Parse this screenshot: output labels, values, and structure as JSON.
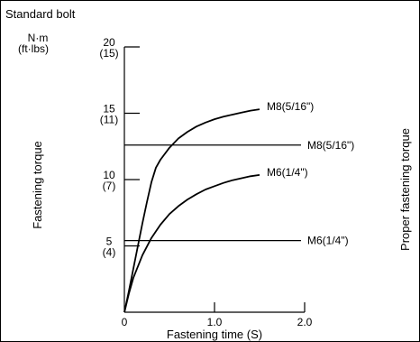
{
  "chart_data": {
    "type": "line",
    "title": "Standard bolt",
    "units": [
      "N·m",
      "(ft·lbs)"
    ],
    "xlabel": "Fastening time (S)",
    "ylabel": "Fastening torque",
    "right_label": "Proper fastening torque",
    "xlim": [
      0,
      2.0
    ],
    "ylim": [
      0,
      20
    ],
    "x_ticks": [
      {
        "value": 0,
        "label": "0"
      },
      {
        "value": 1.0,
        "label": "1.0"
      },
      {
        "value": 2.0,
        "label": "2.0"
      }
    ],
    "y_ticks": [
      {
        "value": 5,
        "nm": "5",
        "ftlbs": "(4)"
      },
      {
        "value": 10,
        "nm": "10",
        "ftlbs": "(7)"
      },
      {
        "value": 15,
        "nm": "15",
        "ftlbs": "(11)"
      },
      {
        "value": 20,
        "nm": "20",
        "ftlbs": "(15)"
      }
    ],
    "series": [
      {
        "name": "M8(5/16\")",
        "x": [
          0,
          0.05,
          0.1,
          0.15,
          0.2,
          0.25,
          0.3,
          0.35,
          0.4,
          0.5,
          0.6,
          0.7,
          0.8,
          0.9,
          1.0,
          1.1,
          1.2,
          1.3,
          1.4,
          1.5
        ],
        "values": [
          0,
          1.6,
          3.3,
          5.0,
          6.7,
          8.3,
          9.8,
          10.9,
          11.5,
          12.4,
          13.1,
          13.6,
          14.0,
          14.3,
          14.55,
          14.75,
          14.9,
          15.05,
          15.2,
          15.3
        ]
      },
      {
        "name": "M6(1/4\")",
        "x": [
          0,
          0.05,
          0.1,
          0.2,
          0.3,
          0.4,
          0.5,
          0.6,
          0.7,
          0.8,
          0.9,
          1.0,
          1.1,
          1.2,
          1.3,
          1.4,
          1.5
        ],
        "values": [
          0,
          1.4,
          2.6,
          4.3,
          5.6,
          6.6,
          7.4,
          8.0,
          8.5,
          8.9,
          9.25,
          9.5,
          9.75,
          9.95,
          10.1,
          10.25,
          10.35
        ]
      }
    ],
    "reference_lines": [
      {
        "name": "M8(5/16\")",
        "value": 12.6
      },
      {
        "name": "M6(1/4\")",
        "value": 5.4
      }
    ]
  }
}
